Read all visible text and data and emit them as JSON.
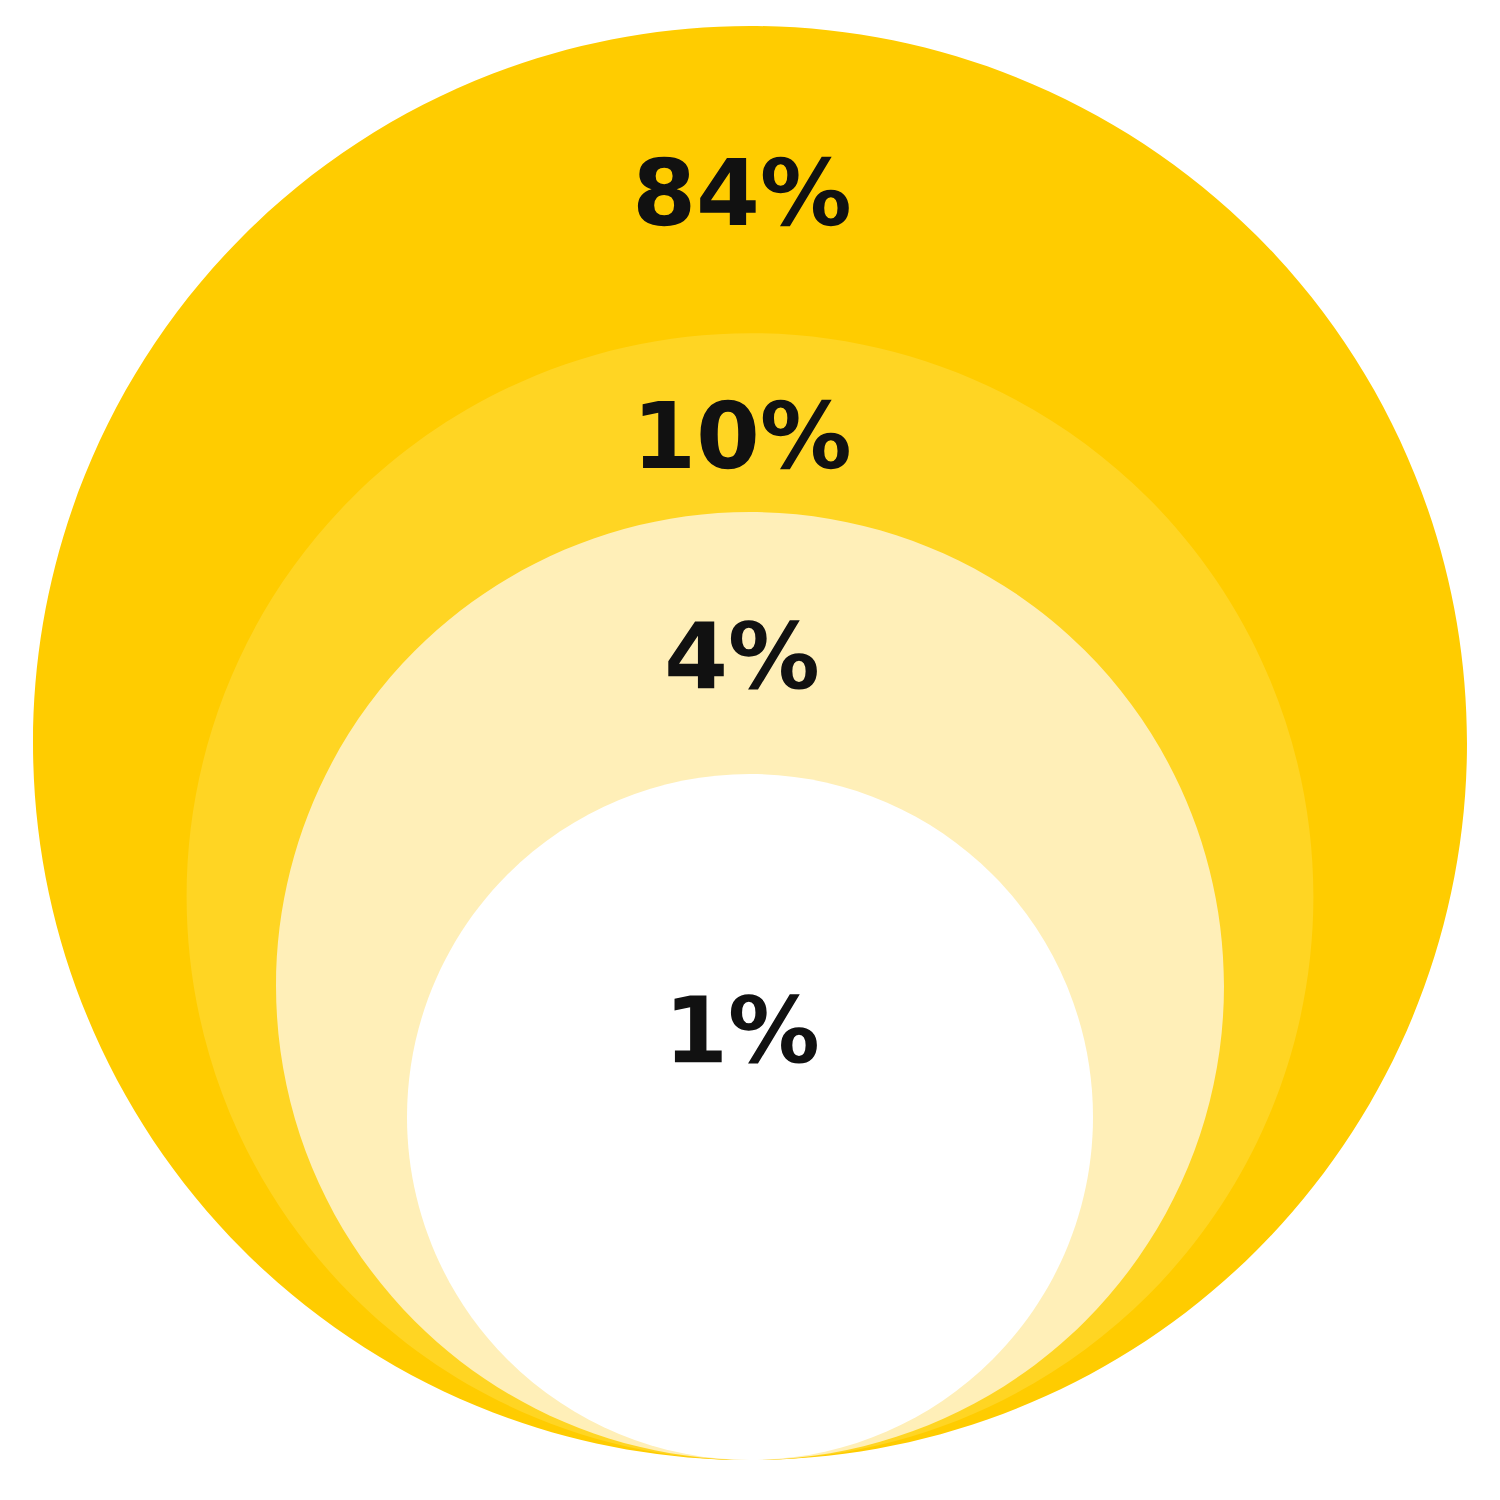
{
  "chart_data": {
    "type": "other",
    "categories": [
      null,
      null,
      null,
      null
    ],
    "values": [
      84,
      10,
      4,
      1
    ],
    "value_labels": [
      "84%",
      "10%",
      "4%",
      "1%"
    ],
    "colors": [
      "#ffcc00",
      "#ffd523",
      "#ffefb8",
      "#ffffff"
    ]
  }
}
